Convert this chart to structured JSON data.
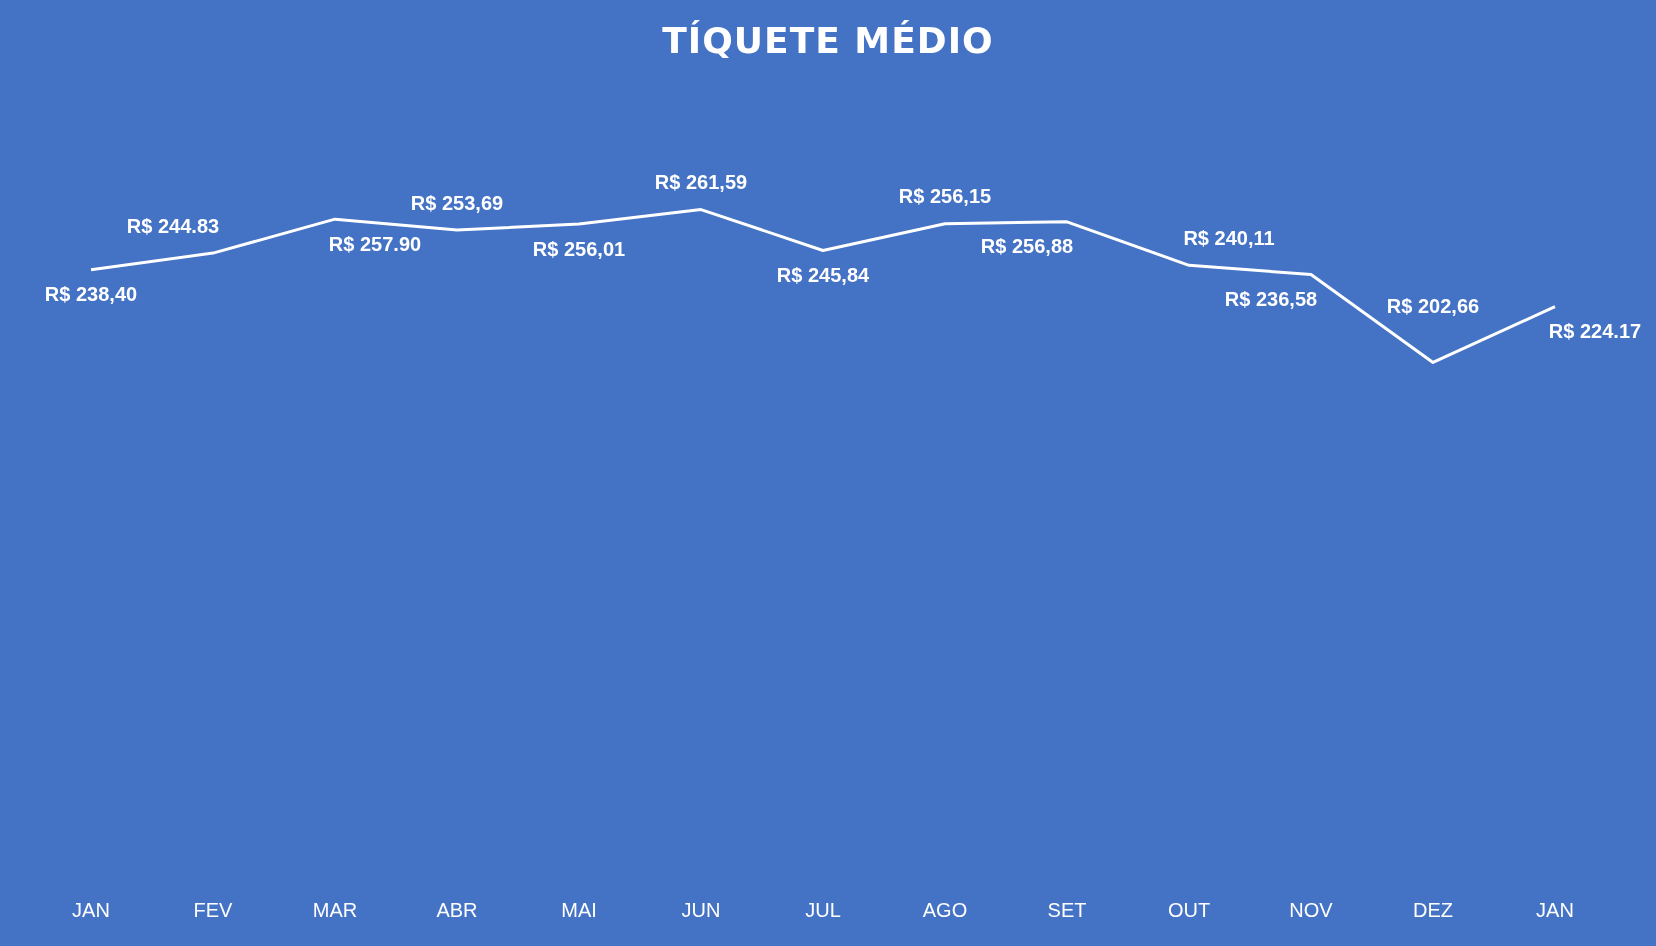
{
  "chart_data": {
    "type": "line",
    "title": "TÍQUETE MÉDIO",
    "categories": [
      "JAN",
      "FEV",
      "MAR",
      "ABR",
      "MAI",
      "JUN",
      "JUL",
      "AGO",
      "SET",
      "OUT",
      "NOV",
      "DEZ",
      "JAN"
    ],
    "series": [
      {
        "color": "#ffffff",
        "values": [
          238.4,
          244.83,
          257.9,
          253.69,
          256.01,
          261.59,
          245.84,
          256.15,
          256.88,
          240.11,
          236.58,
          202.66,
          224.17
        ],
        "value_labels": [
          "R$ 238,40",
          "R$ 244.83",
          "R$ 257.90",
          "R$ 253,69",
          "R$ 256,01",
          "R$ 261,59",
          "R$ 245,84",
          "R$ 256,15",
          "R$ 256,88",
          "R$ 240,11",
          "R$ 236,58",
          "R$ 202,66",
          "R$ 224.17"
        ]
      }
    ],
    "grid": false,
    "legend": false,
    "tick_labels": "x",
    "marker": "none",
    "line_style": "solid"
  }
}
